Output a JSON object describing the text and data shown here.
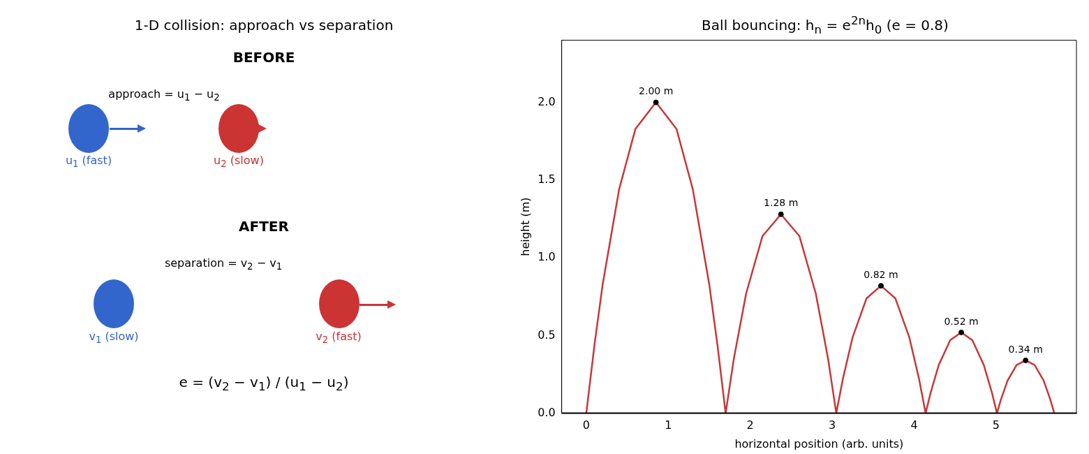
{
  "chart_data": [
    {
      "type": "other",
      "title": "1-D collision: approach vs separation",
      "annotations": [
        "BEFORE",
        "approach = u$_{1}$ − u$_{2}$",
        "u$_{1}$ (fast)",
        "u$_{2}$ (slow)",
        "AFTER",
        "separation = v$_{2}$ − v$_{1}$",
        "v$_{1}$ (slow)",
        "v$_{2}$ (fast)",
        "e = (v$_{2}$ − v$_{1}$) / (u$_{1}$ − u$_{2}$)"
      ]
    },
    {
      "type": "line",
      "title": "Ball bouncing: h$_{n}$ = e$^{2n}$h$_{0}$  (e = 0.8)",
      "xlabel": "horizontal position (arb. units)",
      "ylabel": "height (m)",
      "xlim": [
        -0.3,
        5.98
      ],
      "ylim": [
        0,
        2.4
      ],
      "xticks": [
        0,
        1,
        2,
        3,
        4,
        5
      ],
      "yticks": [
        {
          "value": 0,
          "label": "0.0"
        },
        {
          "value": 0.5,
          "label": "0.5"
        },
        {
          "value": 1,
          "label": "1.0"
        },
        {
          "value": 1.5,
          "label": "1.5"
        },
        {
          "value": 2,
          "label": "2.0"
        }
      ],
      "grid": false,
      "legend": false,
      "ref_lines": [
        {
          "axis": "y",
          "value": 0,
          "color": "#000000"
        }
      ],
      "series": [
        {
          "type": "line",
          "color": "#c83737",
          "line_style": "solid",
          "x": [
            0,
            0.1,
            0.2,
            0.4,
            0.6,
            0.85,
            1.1,
            1.3,
            1.5,
            1.6,
            1.7,
            1.8,
            1.95,
            2.15,
            2.375,
            2.6,
            2.8,
            2.95,
            3.05,
            3.13,
            3.25,
            3.42,
            3.595,
            3.77,
            3.94,
            4.06,
            4.14,
            4.2,
            4.3,
            4.44,
            4.575,
            4.71,
            4.85,
            4.95,
            5.01,
            5.06,
            5.14,
            5.25,
            5.36,
            5.47,
            5.58,
            5.66,
            5.71
          ],
          "values": [
            0,
            0.44,
            0.83,
            1.44,
            1.83,
            2.0,
            1.83,
            1.44,
            0.83,
            0.44,
            0,
            0.35,
            0.77,
            1.14,
            1.28,
            1.14,
            0.77,
            0.35,
            0,
            0.22,
            0.49,
            0.74,
            0.82,
            0.74,
            0.49,
            0.22,
            0,
            0.13,
            0.31,
            0.47,
            0.52,
            0.47,
            0.31,
            0.13,
            0,
            0.09,
            0.21,
            0.31,
            0.34,
            0.31,
            0.21,
            0.09,
            0
          ]
        },
        {
          "type": "scatter",
          "color": "#000000",
          "marker": "circle",
          "x": [
            0.85,
            2.375,
            3.595,
            4.575,
            5.36
          ],
          "values": [
            2.0,
            1.28,
            0.82,
            0.52,
            0.34
          ],
          "value_labels": [
            "2.00 m",
            "1.28 m",
            "0.82 m",
            "0.52 m",
            "0.34 m"
          ]
        }
      ]
    }
  ]
}
